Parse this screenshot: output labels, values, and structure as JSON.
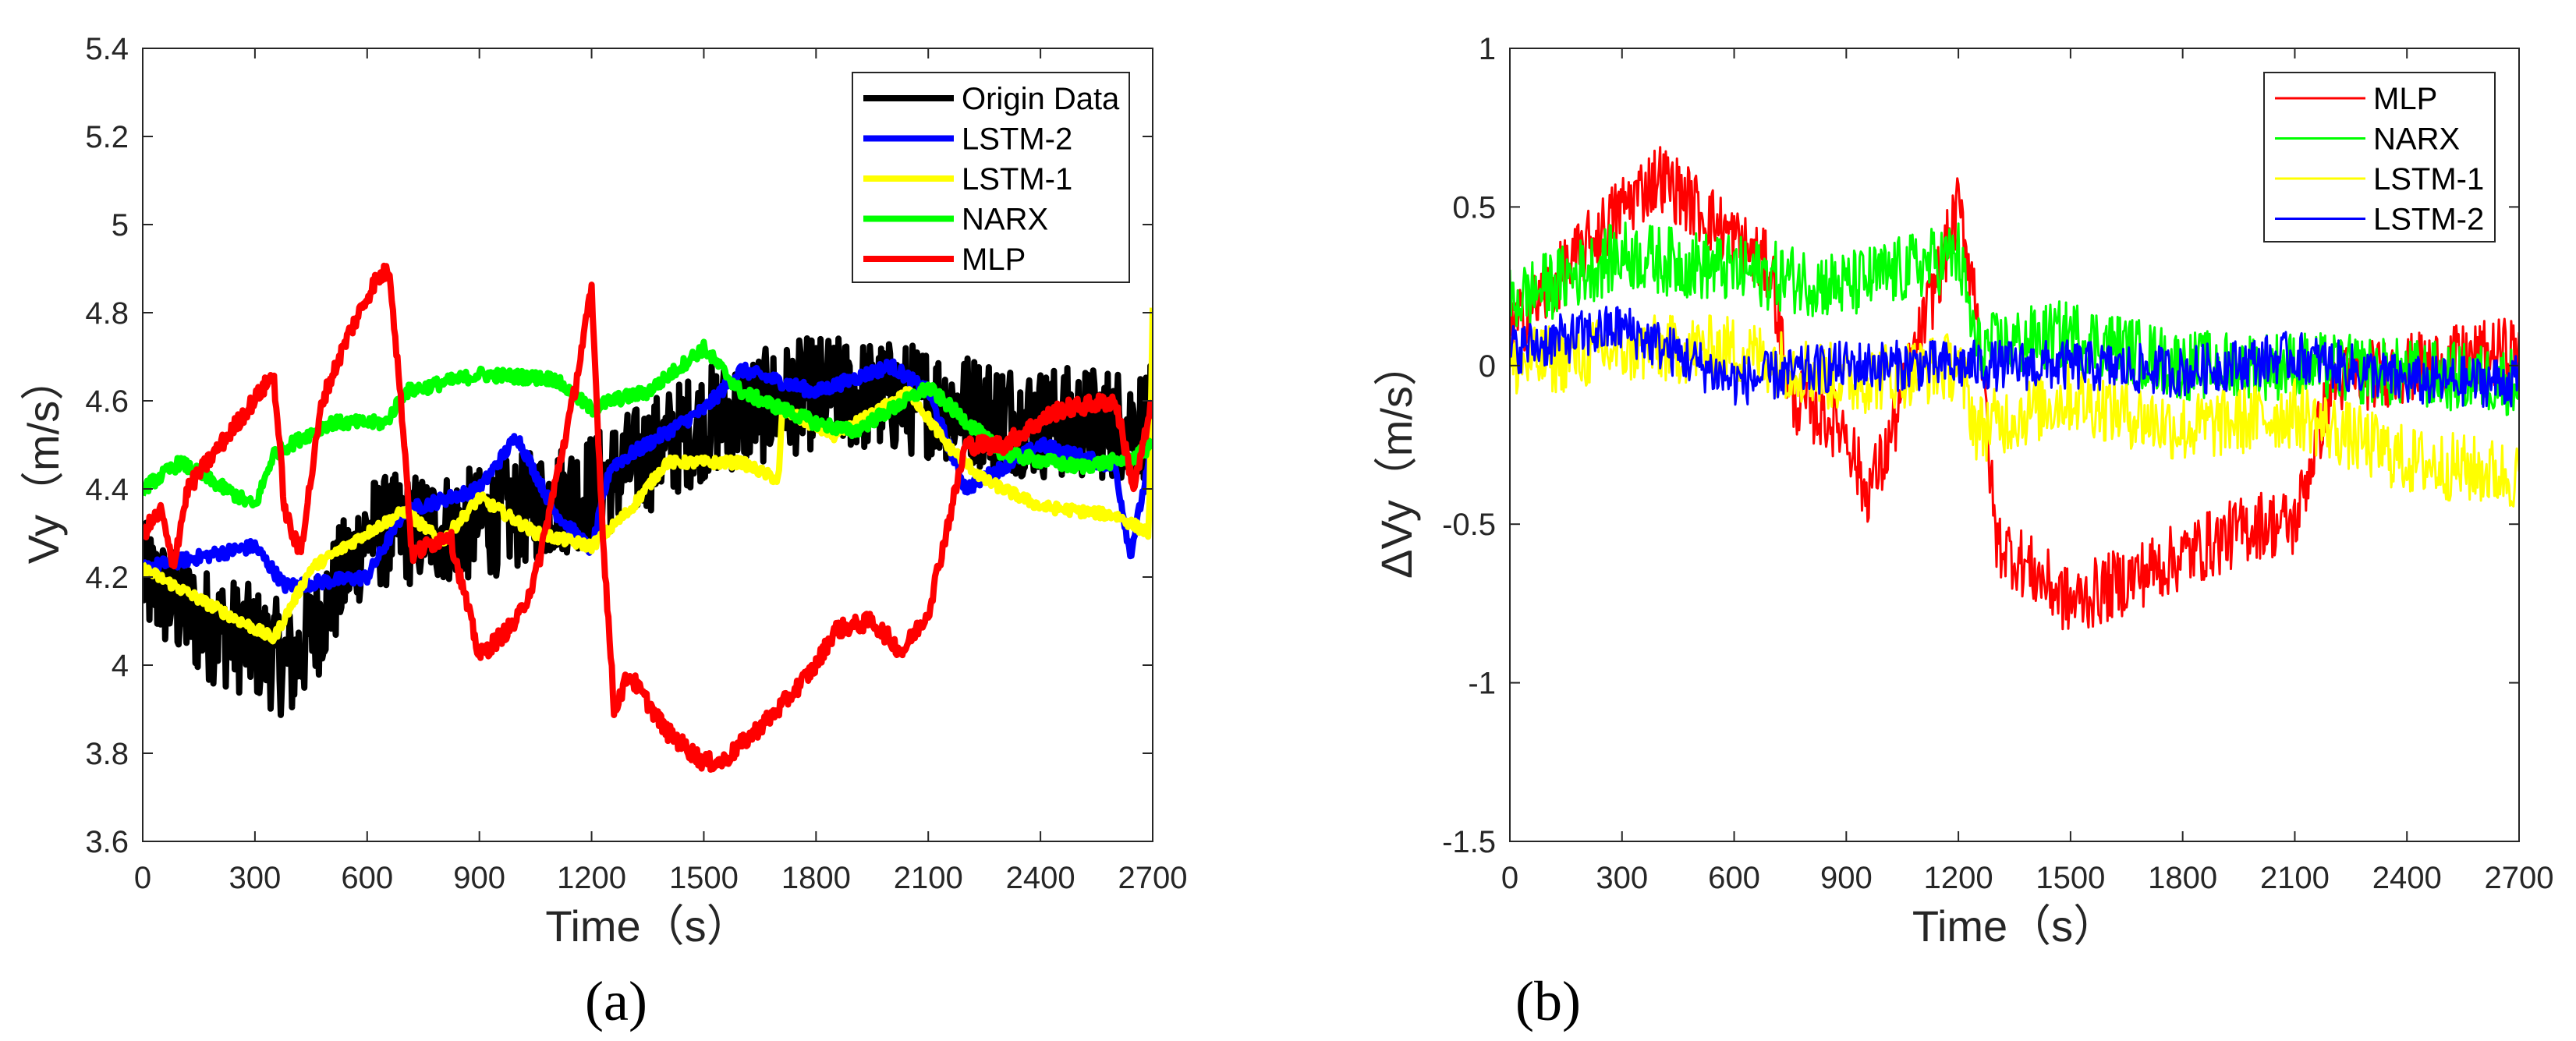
{
  "chart_data": [
    {
      "type": "line",
      "caption": "(a)",
      "xlabel": "Time（s）",
      "ylabel": "Vy（m/s）",
      "xlim": [
        0,
        2700
      ],
      "ylim": [
        3.6,
        5.4
      ],
      "xticks": [
        "0",
        "300",
        "600",
        "900",
        "1200",
        "1500",
        "1800",
        "2100",
        "2400",
        "2700"
      ],
      "yticks": [
        "3.6",
        "3.8",
        "4",
        "4.2",
        "4.4",
        "4.6",
        "4.8",
        "5",
        "5.2",
        "5.4"
      ],
      "legend_position": "top-right",
      "series": [
        {
          "name": "Origin Data",
          "color": "#000000",
          "noise": 0.13,
          "points": [
            [
              0,
              4.2
            ],
            [
              150,
              4.1
            ],
            [
              300,
              4.05
            ],
            [
              400,
              4.0
            ],
            [
              600,
              4.3
            ],
            [
              900,
              4.32
            ],
            [
              1200,
              4.4
            ],
            [
              1500,
              4.55
            ],
            [
              1800,
              4.62
            ],
            [
              2100,
              4.6
            ],
            [
              2400,
              4.55
            ],
            [
              2700,
              4.55
            ]
          ]
        },
        {
          "name": "LSTM-2",
          "color": "#0000ff",
          "noise": 0.015,
          "points": [
            [
              0,
              4.22
            ],
            [
              300,
              4.27
            ],
            [
              380,
              4.18
            ],
            [
              600,
              4.2
            ],
            [
              700,
              4.35
            ],
            [
              900,
              4.4
            ],
            [
              1000,
              4.52
            ],
            [
              1100,
              4.35
            ],
            [
              1200,
              4.26
            ],
            [
              1250,
              4.45
            ],
            [
              1500,
              4.58
            ],
            [
              1600,
              4.67
            ],
            [
              1800,
              4.62
            ],
            [
              2000,
              4.68
            ],
            [
              2100,
              4.62
            ],
            [
              2200,
              4.4
            ],
            [
              2400,
              4.5
            ],
            [
              2600,
              4.45
            ],
            [
              2640,
              4.25
            ],
            [
              2700,
              4.5
            ]
          ]
        },
        {
          "name": "LSTM-1",
          "color": "#ffff00",
          "noise": 0.012,
          "points": [
            [
              0,
              4.22
            ],
            [
              150,
              4.15
            ],
            [
              350,
              4.06
            ],
            [
              450,
              4.22
            ],
            [
              600,
              4.3
            ],
            [
              700,
              4.35
            ],
            [
              800,
              4.28
            ],
            [
              900,
              4.38
            ],
            [
              1050,
              4.3
            ],
            [
              1200,
              4.27
            ],
            [
              1300,
              4.35
            ],
            [
              1400,
              4.46
            ],
            [
              1600,
              4.46
            ],
            [
              1700,
              4.42
            ],
            [
              1710,
              4.58
            ],
            [
              1850,
              4.52
            ],
            [
              2050,
              4.62
            ],
            [
              2150,
              4.5
            ],
            [
              2250,
              4.42
            ],
            [
              2400,
              4.36
            ],
            [
              2600,
              4.34
            ],
            [
              2690,
              4.3
            ],
            [
              2700,
              4.8
            ]
          ]
        },
        {
          "name": "NARX",
          "color": "#00ff00",
          "noise": 0.015,
          "points": [
            [
              0,
              4.4
            ],
            [
              100,
              4.46
            ],
            [
              300,
              4.36
            ],
            [
              350,
              4.48
            ],
            [
              500,
              4.55
            ],
            [
              650,
              4.55
            ],
            [
              700,
              4.62
            ],
            [
              900,
              4.66
            ],
            [
              1100,
              4.65
            ],
            [
              1200,
              4.58
            ],
            [
              1250,
              4.6
            ],
            [
              1350,
              4.62
            ],
            [
              1500,
              4.72
            ],
            [
              1600,
              4.62
            ],
            [
              1800,
              4.55
            ],
            [
              1900,
              4.53
            ],
            [
              2100,
              4.63
            ],
            [
              2300,
              4.48
            ],
            [
              2500,
              4.45
            ],
            [
              2650,
              4.47
            ],
            [
              2700,
              4.5
            ]
          ]
        },
        {
          "name": "MLP",
          "color": "#ff0000",
          "noise": 0.02,
          "points": [
            [
              0,
              4.3
            ],
            [
              50,
              4.35
            ],
            [
              80,
              4.22
            ],
            [
              120,
              4.4
            ],
            [
              350,
              4.66
            ],
            [
              380,
              4.35
            ],
            [
              420,
              4.25
            ],
            [
              480,
              4.6
            ],
            [
              550,
              4.75
            ],
            [
              620,
              4.87
            ],
            [
              660,
              4.9
            ],
            [
              700,
              4.5
            ],
            [
              720,
              4.25
            ],
            [
              820,
              4.3
            ],
            [
              900,
              4.02
            ],
            [
              1000,
              4.1
            ],
            [
              1050,
              4.2
            ],
            [
              1150,
              4.6
            ],
            [
              1200,
              4.85
            ],
            [
              1230,
              4.3
            ],
            [
              1260,
              3.9
            ],
            [
              1300,
              3.98
            ],
            [
              1400,
              3.85
            ],
            [
              1500,
              3.78
            ],
            [
              1550,
              3.78
            ],
            [
              1700,
              3.9
            ],
            [
              1800,
              4.0
            ],
            [
              1850,
              4.08
            ],
            [
              1950,
              4.1
            ],
            [
              2030,
              4.03
            ],
            [
              2100,
              4.12
            ],
            [
              2200,
              4.5
            ],
            [
              2300,
              4.5
            ],
            [
              2450,
              4.58
            ],
            [
              2600,
              4.6
            ],
            [
              2650,
              4.4
            ],
            [
              2700,
              4.6
            ]
          ]
        }
      ]
    },
    {
      "type": "line",
      "caption": "(b)",
      "xlabel": "Time（s）",
      "ylabel": "ΔVy（m/s）",
      "xlim": [
        0,
        2700
      ],
      "ylim": [
        -1.5,
        1
      ],
      "xticks": [
        "0",
        "300",
        "600",
        "900",
        "1200",
        "1500",
        "1800",
        "2100",
        "2400",
        "2700"
      ],
      "yticks": [
        "-1.5",
        "-1",
        "-0.5",
        "0",
        "0.5",
        "1"
      ],
      "legend_position": "top-right",
      "series": [
        {
          "name": "MLP",
          "color": "#ff0000",
          "noise": 0.11,
          "points": [
            [
              0,
              0.1
            ],
            [
              300,
              0.5
            ],
            [
              400,
              0.6
            ],
            [
              600,
              0.4
            ],
            [
              700,
              0.3
            ],
            [
              750,
              -0.1
            ],
            [
              900,
              -0.2
            ],
            [
              950,
              -0.4
            ],
            [
              1000,
              -0.3
            ],
            [
              1100,
              0.1
            ],
            [
              1200,
              0.5
            ],
            [
              1250,
              0.2
            ],
            [
              1300,
              -0.55
            ],
            [
              1500,
              -0.75
            ],
            [
              1800,
              -0.6
            ],
            [
              2000,
              -0.5
            ],
            [
              2100,
              -0.5
            ],
            [
              2200,
              -0.05
            ],
            [
              2700,
              0.05
            ]
          ]
        },
        {
          "name": "NARX",
          "color": "#00ff00",
          "noise": 0.11,
          "points": [
            [
              0,
              0.2
            ],
            [
              300,
              0.35
            ],
            [
              600,
              0.3
            ],
            [
              900,
              0.25
            ],
            [
              1200,
              0.35
            ],
            [
              1250,
              0.05
            ],
            [
              1500,
              0.1
            ],
            [
              1800,
              0.0
            ],
            [
              2100,
              0.0
            ],
            [
              2700,
              -0.05
            ]
          ]
        },
        {
          "name": "LSTM-1",
          "color": "#ffff00",
          "noise": 0.11,
          "points": [
            [
              0,
              0
            ],
            [
              300,
              0.05
            ],
            [
              600,
              0.05
            ],
            [
              900,
              -0.05
            ],
            [
              1200,
              0.0
            ],
            [
              1250,
              -0.2
            ],
            [
              1500,
              -0.1
            ],
            [
              1800,
              -0.2
            ],
            [
              2100,
              -0.15
            ],
            [
              2400,
              -0.3
            ],
            [
              2700,
              -0.35
            ]
          ]
        },
        {
          "name": "LSTM-2",
          "color": "#0000ff",
          "noise": 0.08,
          "points": [
            [
              0,
              0.05
            ],
            [
              300,
              0.12
            ],
            [
              600,
              -0.05
            ],
            [
              900,
              0.0
            ],
            [
              1200,
              0.0
            ],
            [
              1500,
              0.0
            ],
            [
              1800,
              -0.02
            ],
            [
              2100,
              0.03
            ],
            [
              2400,
              -0.05
            ],
            [
              2700,
              -0.05
            ]
          ]
        }
      ]
    }
  ]
}
